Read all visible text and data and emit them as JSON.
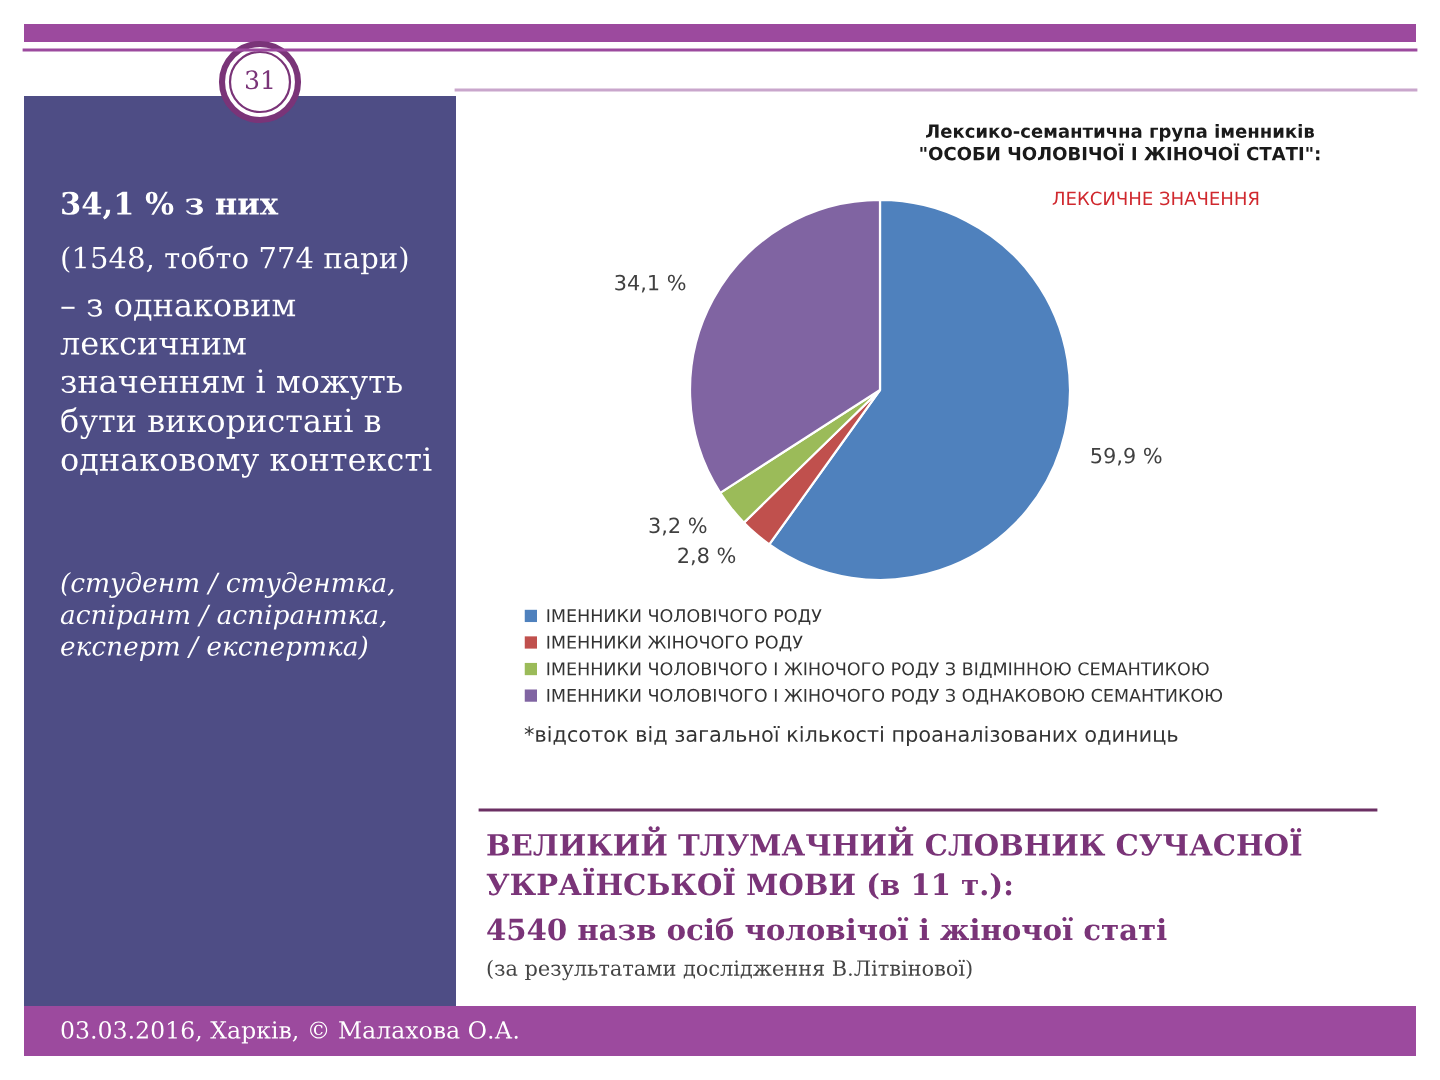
{
  "chart_data": {
    "type": "pie",
    "title": "Лексико-семантична група іменників\n\"ОСОБИ ЧОЛОВІЧОЇ І ЖІНОЧОЇ СТАТІ\":",
    "subtitle": "ЛЕКСИЧНЕ ЗНАЧЕННЯ",
    "categories": [
      "ІМЕННИКИ ЧОЛОВІЧОГО РОДУ",
      "ІМЕННИКИ ЖІНОЧОГО РОДУ",
      "ІМЕННИКИ ЧОЛОВІЧОГО І ЖІНОЧОГО РОДУ З ВІДМІННОЮ СЕМАНТИКОЮ",
      "ІМЕННИКИ ЧОЛОВІЧОГО І ЖІНОЧОГО РОДУ З ОДНАКОВОЮ СЕМАНТИКОЮ"
    ],
    "values": [
      59.9,
      2.8,
      3.2,
      34.1
    ],
    "value_labels": [
      "59,9 %",
      "2,8 %",
      "3,2 %",
      "34,1 %"
    ],
    "colors": [
      "#4f81bd",
      "#c0504d",
      "#9bbb59",
      "#8064a2"
    ],
    "legend": "bottom",
    "annotations": [
      "31",
      "34,1 % з них",
      "(1548, тобто 774 пари)",
      "– з однаковим лексичним значенням і можуть бути використані в однаковому контексті",
      "(студент / студентка, аспірант / аспірантка, експерт / експертка)",
      "*відсоток від загальної кількості проаналізованих одиниць",
      "ВЕЛИКИЙ ТЛУМАЧНИЙ СЛОВНИК СУЧАСНОЇ УКРАЇНСЬКОЇ МОВИ (в 11 т.):",
      "4540 назв осіб чоловічої і жіночої статі",
      "(за результатами дослідження В.Літвінової)",
      "03.03.2016, Харків, © Малахова О.А."
    ]
  }
}
